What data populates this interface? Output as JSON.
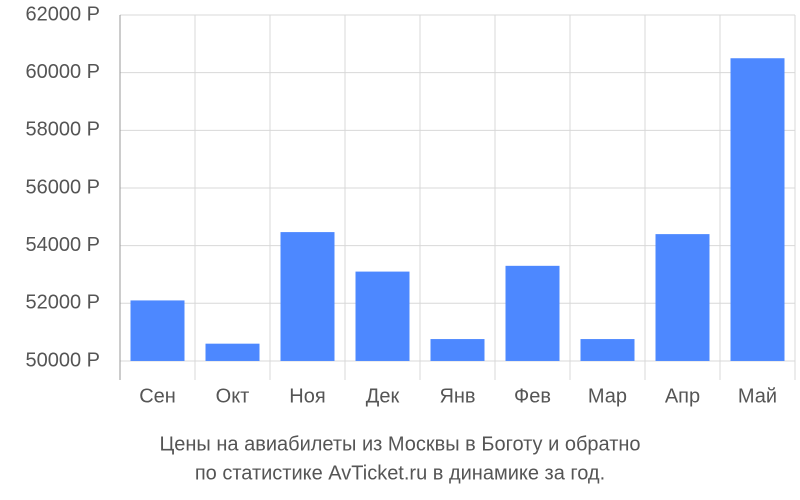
{
  "chart_data": {
    "type": "bar",
    "title": "Цены на авиабилеты из Москвы в Боготу и обратно",
    "subtitle": "по статистике AvTicket.ru в динамике за год.",
    "categories": [
      "Сен",
      "Окт",
      "Ноя",
      "Дек",
      "Янв",
      "Фев",
      "Мар",
      "Апр",
      "Май"
    ],
    "values": [
      52100,
      50600,
      54470,
      53100,
      50760,
      53300,
      50760,
      54400,
      60500
    ],
    "color": "#4d88ff",
    "ylim": [
      49340,
      62000
    ],
    "yticks": [
      {
        "value": 50000,
        "label": "50000 Р"
      },
      {
        "value": 52000,
        "label": "52000 Р"
      },
      {
        "value": 54000,
        "label": "54000 Р"
      },
      {
        "value": 56000,
        "label": "56000 Р"
      },
      {
        "value": 58000,
        "label": "58000 Р"
      },
      {
        "value": 60000,
        "label": "60000 Р"
      },
      {
        "value": 62000,
        "label": "62000 Р"
      }
    ],
    "grid": true
  }
}
